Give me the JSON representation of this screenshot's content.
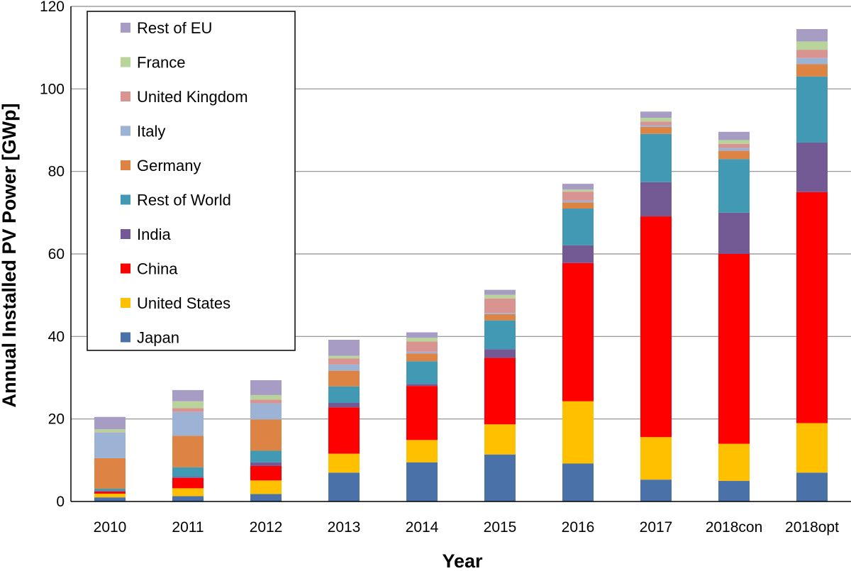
{
  "chart_data": {
    "type": "bar",
    "stacked": true,
    "title": "",
    "xlabel": "Year",
    "ylabel": "Annual Installed PV Power [GWp]",
    "ylim": [
      0,
      120
    ],
    "yticks": [
      0,
      20,
      40,
      60,
      80,
      100,
      120
    ],
    "grid": true,
    "legend_position": "top-left",
    "categories": [
      "2010",
      "2011",
      "2012",
      "2013",
      "2014",
      "2015",
      "2016",
      "2017",
      "2018con",
      "2018opt"
    ],
    "series": [
      {
        "name": "Japan",
        "color": "#4a72a8",
        "values": [
          1.0,
          1.3,
          1.8,
          7.0,
          9.5,
          11.4,
          9.2,
          5.3,
          5.0,
          7.0
        ]
      },
      {
        "name": "United States",
        "color": "#ffc000",
        "values": [
          0.9,
          1.9,
          3.3,
          4.6,
          5.4,
          7.3,
          15.1,
          10.3,
          9.0,
          12.0
        ]
      },
      {
        "name": "China",
        "color": "#ff0000",
        "values": [
          0.5,
          2.5,
          3.5,
          11.2,
          13.1,
          16.1,
          33.5,
          53.5,
          46.0,
          56.0
        ]
      },
      {
        "name": "India",
        "color": "#735a95",
        "values": [
          0.1,
          0.3,
          0.9,
          1.1,
          0.5,
          2.1,
          4.3,
          8.3,
          10.0,
          12.0
        ]
      },
      {
        "name": "Rest of World",
        "color": "#4299b4",
        "values": [
          0.6,
          2.3,
          2.8,
          4.0,
          5.5,
          7.0,
          8.9,
          11.7,
          13.0,
          16.0
        ]
      },
      {
        "name": "Germany",
        "color": "#dd8444",
        "values": [
          7.4,
          7.6,
          7.6,
          3.8,
          1.9,
          1.5,
          1.5,
          1.7,
          2.0,
          3.0
        ]
      },
      {
        "name": "Italy",
        "color": "#9db3d6",
        "values": [
          6.2,
          5.8,
          3.9,
          1.5,
          0.4,
          0.3,
          0.4,
          0.4,
          0.7,
          1.5
        ]
      },
      {
        "name": "United Kingdom",
        "color": "#d99492",
        "values": [
          0.1,
          0.9,
          0.9,
          1.5,
          2.5,
          3.5,
          2.2,
          0.9,
          1.0,
          2.0
        ]
      },
      {
        "name": "France",
        "color": "#b8d49a",
        "values": [
          0.7,
          1.7,
          1.1,
          0.6,
          0.9,
          0.9,
          0.5,
          0.9,
          0.9,
          2.0
        ]
      },
      {
        "name": "Rest of EU",
        "color": "#a79cc4",
        "values": [
          3.0,
          2.7,
          3.6,
          3.9,
          1.3,
          1.2,
          1.4,
          1.5,
          2.0,
          3.0
        ]
      }
    ],
    "legend_order": [
      "Rest of EU",
      "France",
      "United Kingdom",
      "Italy",
      "Germany",
      "Rest of World",
      "India",
      "China",
      "United States",
      "Japan"
    ]
  }
}
